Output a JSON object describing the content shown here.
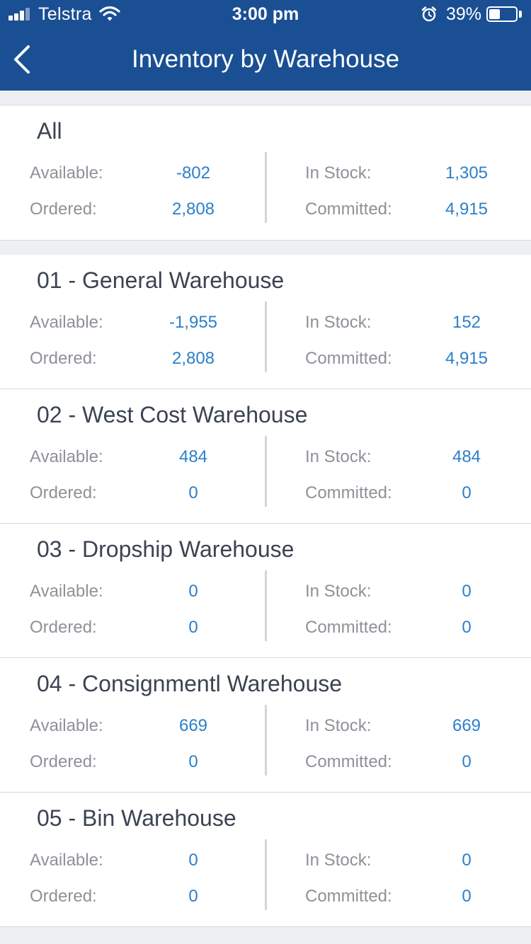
{
  "status_bar": {
    "carrier": "Telstra",
    "time": "3:00 pm",
    "battery_percent": "39%",
    "icons": [
      "signal-icon",
      "wifi-icon",
      "alarm-icon",
      "battery-icon"
    ]
  },
  "nav": {
    "title": "Inventory by Warehouse",
    "back_icon": "chevron-left-icon"
  },
  "colors": {
    "nav_background": "#1a4f94",
    "value_text": "#2c7fcb",
    "label_text": "#8e9198",
    "title_text": "#3b4352",
    "page_background": "#eeeff3"
  },
  "labels": {
    "available": "Available:",
    "ordered": "Ordered:",
    "in_stock": "In Stock:",
    "committed": "Committed:"
  },
  "warehouses": [
    {
      "name": "All",
      "available": "-802",
      "ordered": "2,808",
      "in_stock": "1,305",
      "committed": "4,915"
    },
    {
      "name": "01 - General Warehouse",
      "available": "-1,955",
      "ordered": "2,808",
      "in_stock": "152",
      "committed": "4,915"
    },
    {
      "name": "02 - West Cost Warehouse",
      "available": "484",
      "ordered": "0",
      "in_stock": "484",
      "committed": "0"
    },
    {
      "name": "03 - Dropship Warehouse",
      "available": "0",
      "ordered": "0",
      "in_stock": "0",
      "committed": "0"
    },
    {
      "name": "04 - Consignmentl Warehouse",
      "available": "669",
      "ordered": "0",
      "in_stock": "669",
      "committed": "0"
    },
    {
      "name": "05 - Bin Warehouse",
      "available": "0",
      "ordered": "0",
      "in_stock": "0",
      "committed": "0"
    }
  ]
}
